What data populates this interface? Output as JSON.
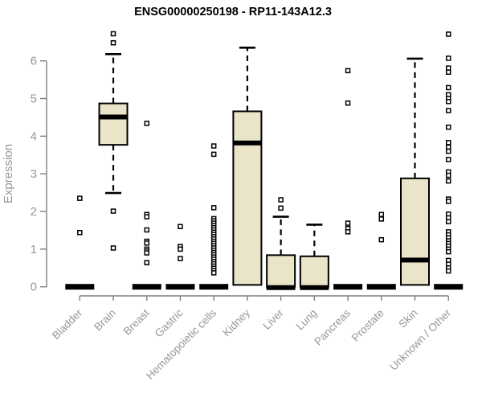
{
  "chart_data": {
    "type": "boxplot",
    "title": "ENSG00000250198 - RP11-143A12.3",
    "xlabel": "",
    "ylabel": "Expression",
    "ylim": [
      0,
      6.9
    ],
    "yticks": [
      0,
      1,
      2,
      3,
      4,
      5,
      6
    ],
    "grid": false,
    "legend": "none",
    "categories": [
      "Bladder",
      "Brain",
      "Breast",
      "Gastric",
      "Hematopoietic cells",
      "Kidney",
      "Liver",
      "Lung",
      "Pancreas",
      "Prostate",
      "Skin",
      "Unknown / Other"
    ],
    "series": [
      {
        "name": "Bladder",
        "q1": 0,
        "median": 0,
        "q3": 0,
        "whisker_low": null,
        "whisker_high": null,
        "outliers": [
          2.35,
          1.44
        ]
      },
      {
        "name": "Brain",
        "q1": 3.77,
        "median": 4.51,
        "q3": 4.87,
        "whisker_low": 2.49,
        "whisker_high": 6.18,
        "outliers": [
          6.72,
          6.48,
          2.01,
          1.03
        ]
      },
      {
        "name": "Breast",
        "q1": 0,
        "median": 0,
        "q3": 0,
        "whisker_low": null,
        "whisker_high": null,
        "outliers": [
          4.34,
          1.92,
          1.86,
          1.51,
          1.21,
          1.16,
          1.0,
          0.95,
          0.9,
          0.64
        ]
      },
      {
        "name": "Gastric",
        "q1": 0,
        "median": 0,
        "q3": 0,
        "whisker_low": null,
        "whisker_high": null,
        "outliers": [
          1.6,
          1.07,
          1.0,
          0.75
        ]
      },
      {
        "name": "Hematopoietic cells",
        "q1": 0,
        "median": 0,
        "q3": 0,
        "whisker_low": null,
        "whisker_high": null,
        "outliers": [
          3.74,
          3.52,
          2.1,
          1.81,
          1.75,
          1.69,
          1.63,
          1.57,
          1.51,
          1.45,
          1.39,
          1.33,
          1.27,
          1.21,
          1.15,
          1.09,
          1.03,
          0.97,
          0.91,
          0.85,
          0.79,
          0.73,
          0.67,
          0.61,
          0.55,
          0.49,
          0.43,
          0.37
        ]
      },
      {
        "name": "Kidney",
        "q1": 0.05,
        "median": 3.82,
        "q3": 4.66,
        "whisker_low": null,
        "whisker_high": 6.35,
        "outliers": []
      },
      {
        "name": "Liver",
        "q1": 0,
        "median": 0,
        "q3": 0.84,
        "whisker_low": null,
        "whisker_high": 1.86,
        "outliers": [
          2.31,
          2.09
        ]
      },
      {
        "name": "Lung",
        "q1": 0,
        "median": 0,
        "q3": 0.81,
        "whisker_low": null,
        "whisker_high": 1.65,
        "outliers": []
      },
      {
        "name": "Pancreas",
        "q1": 0,
        "median": 0,
        "q3": 0,
        "whisker_low": null,
        "whisker_high": null,
        "outliers": [
          5.74,
          4.88,
          1.69,
          1.55,
          1.46
        ]
      },
      {
        "name": "Prostate",
        "q1": 0,
        "median": 0,
        "q3": 0,
        "whisker_low": null,
        "whisker_high": null,
        "outliers": [
          1.92,
          1.8,
          1.25
        ]
      },
      {
        "name": "Skin",
        "q1": 0.05,
        "median": 0.71,
        "q3": 2.88,
        "whisker_low": null,
        "whisker_high": 6.06,
        "outliers": []
      },
      {
        "name": "Unknown / Other",
        "q1": 0,
        "median": 0,
        "q3": 0,
        "whisker_low": null,
        "whisker_high": null,
        "outliers": [
          6.71,
          6.07,
          5.81,
          5.7,
          5.29,
          5.1,
          5.0,
          4.92,
          4.68,
          4.24,
          3.83,
          3.71,
          3.6,
          3.38,
          3.05,
          2.96,
          2.81,
          2.33,
          2.27,
          1.93,
          1.83,
          1.73,
          1.46,
          1.38,
          1.3,
          1.22,
          1.15,
          1.08,
          1.0,
          0.93,
          0.7,
          0.6,
          0.5,
          0.42
        ]
      }
    ],
    "colors": {
      "box_fill": "#EAE5C9",
      "box_border": "#000000",
      "median": "#000000",
      "whisker": "#000000",
      "outlier_fill": "#ffffff",
      "outlier_border": "#000000",
      "axis_line": "#7f7f7f",
      "tick_label": "#979797",
      "title": "#000000"
    }
  }
}
